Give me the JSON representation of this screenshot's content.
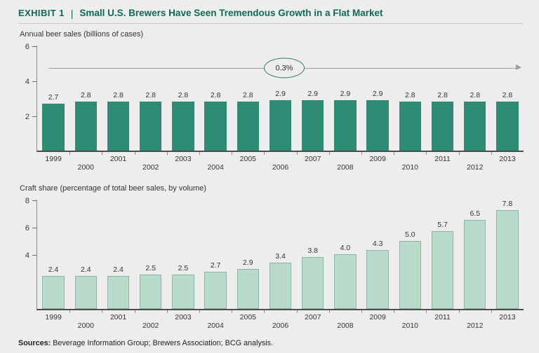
{
  "header": {
    "eyebrow": "EXHIBIT 1",
    "divider": "|",
    "title": "Small U.S. Brewers Have Seen Tremendous Growth in a Flat Market"
  },
  "chart_data": [
    {
      "type": "bar",
      "title": "Annual beer sales (billions of cases)",
      "categories": [
        "1999",
        "2000",
        "2001",
        "2002",
        "2003",
        "2004",
        "2005",
        "2006",
        "2007",
        "2008",
        "2009",
        "2010",
        "2011",
        "2012",
        "2013"
      ],
      "values": [
        2.7,
        2.8,
        2.8,
        2.8,
        2.8,
        2.8,
        2.8,
        2.9,
        2.9,
        2.9,
        2.9,
        2.8,
        2.8,
        2.8,
        2.8
      ],
      "ylim": [
        0,
        6
      ],
      "yticks": [
        2,
        4,
        6
      ],
      "grid": false,
      "legend": "none",
      "bar_color": "#2f8c74",
      "annotation": {
        "label": "0.3%",
        "arrow_y": 4.7
      }
    },
    {
      "type": "bar",
      "title": "Craft share (percentage of total beer sales, by volume)",
      "categories": [
        "1999",
        "2000",
        "2001",
        "2002",
        "2003",
        "2004",
        "2005",
        "2006",
        "2007",
        "2008",
        "2009",
        "2010",
        "2011",
        "2012",
        "2013"
      ],
      "values": [
        2.4,
        2.4,
        2.4,
        2.5,
        2.5,
        2.7,
        2.9,
        3.4,
        3.8,
        4.0,
        4.3,
        5.0,
        5.7,
        6.5,
        7.8
      ],
      "ylim": [
        0,
        8
      ],
      "yticks": [
        4,
        6,
        8
      ],
      "grid": false,
      "legend": "none",
      "bar_color": "#b9dbc9",
      "bar_border": "#86b9a5"
    }
  ],
  "footer": {
    "sources_label": "Sources:",
    "sources_text": " Beverage Information Group; Brewers Association; BCG analysis."
  },
  "colors": {
    "accent_teal": "#0d6b54",
    "bar_dark": "#2f8c74",
    "bar_light": "#b9dbc9",
    "bar_light_border": "#86b9a5",
    "background": "#ededed",
    "arrow": "#9e9e9e",
    "annotation_ring": "#2e7d68"
  }
}
